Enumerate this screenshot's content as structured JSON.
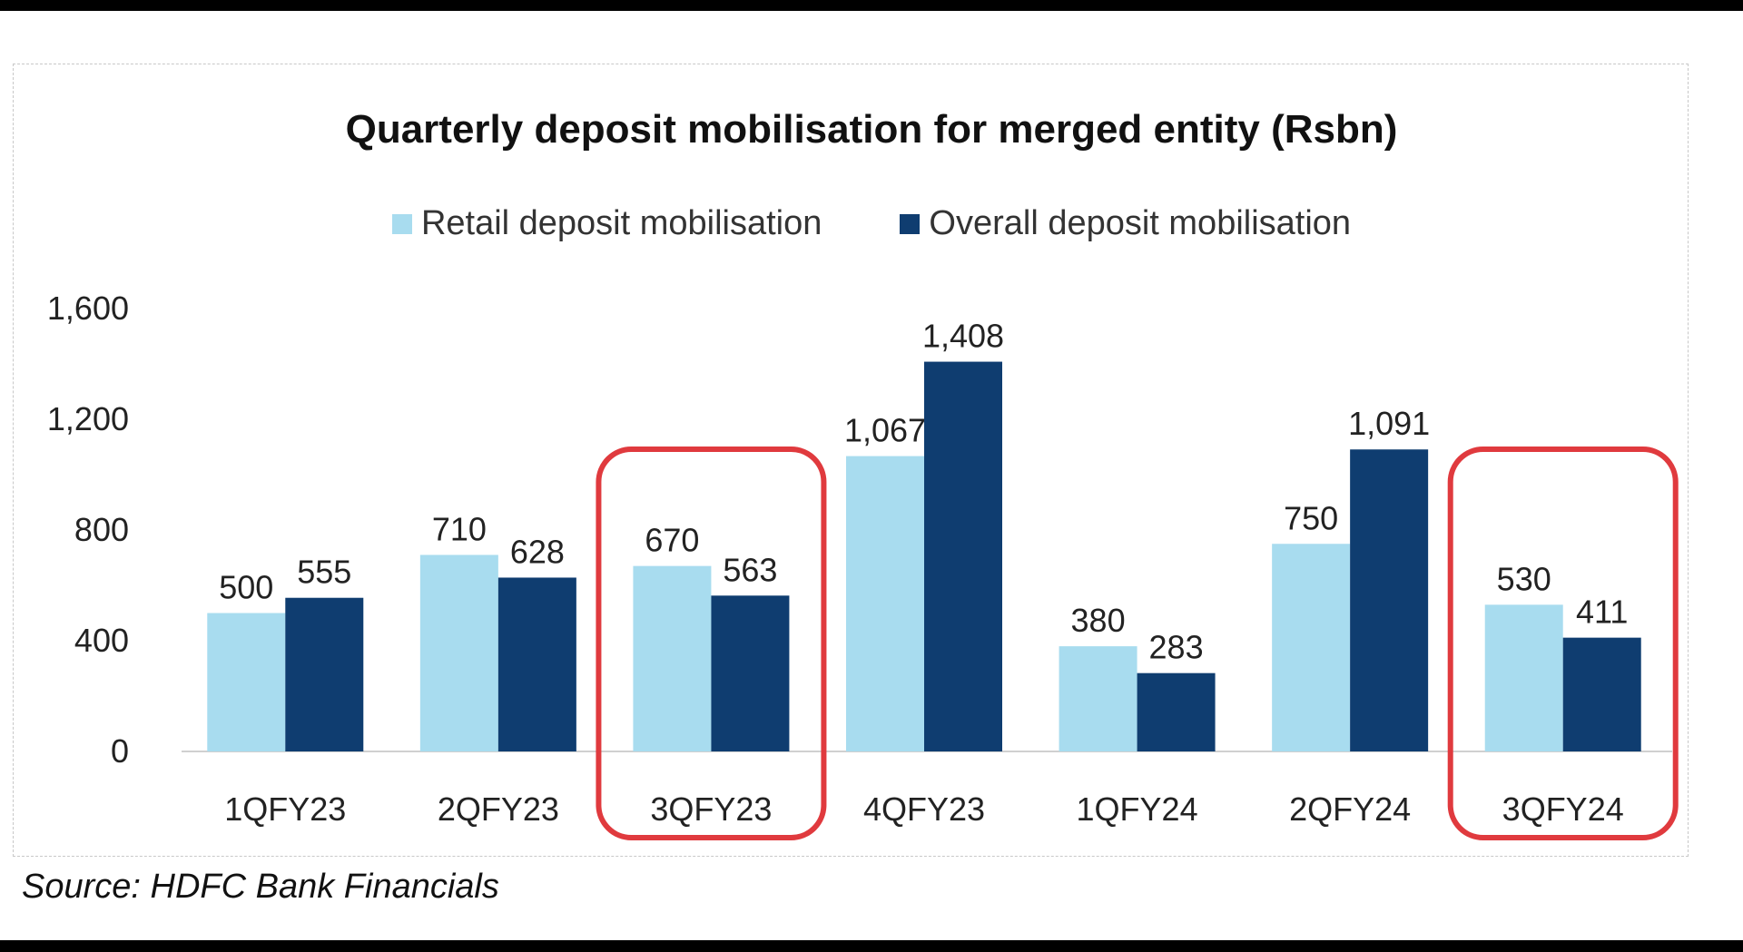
{
  "source_text": "Source: HDFC Bank Financials",
  "chart_data": {
    "type": "bar",
    "title": "Quarterly deposit mobilisation for merged entity (Rsbn)",
    "xlabel": "",
    "ylabel": "",
    "categories": [
      "1QFY23",
      "2QFY23",
      "3QFY23",
      "4QFY23",
      "1QFY24",
      "2QFY24",
      "3QFY24"
    ],
    "series": [
      {
        "name": "Retail deposit mobilisation",
        "color": "#a8dcef",
        "values": [
          500,
          710,
          670,
          1067,
          380,
          750,
          530
        ],
        "labels": [
          "500",
          "710",
          "670",
          "1,067",
          "380",
          "750",
          "530"
        ]
      },
      {
        "name": "Overall deposit mobilisation",
        "color": "#0f3d70",
        "values": [
          555,
          628,
          563,
          1408,
          283,
          1091,
          411
        ],
        "labels": [
          "555",
          "628",
          "563",
          "1,408",
          "283",
          "1,091",
          "411"
        ]
      }
    ],
    "ylim": [
      0,
      1600
    ],
    "yticks": [
      0,
      400,
      800,
      1200,
      1600
    ],
    "ytick_labels": [
      "0",
      "400",
      "800",
      "1,200",
      "1,600"
    ],
    "legend_position": "top-center",
    "grid": false,
    "highlighted_categories": [
      "3QFY23",
      "3QFY24"
    ],
    "highlight_color": "#e03a3e"
  }
}
